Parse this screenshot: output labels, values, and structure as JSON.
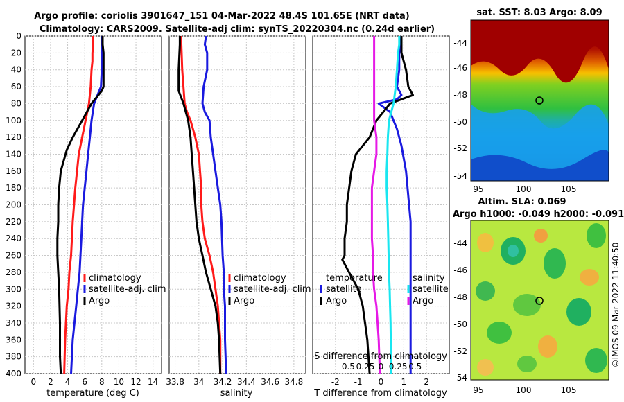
{
  "header": {
    "title_line1": "Argo profile: coriolis 3901647_151 04-Mar-2022 48.4S 101.65E (NRT data)",
    "title_line2": "Climatology: CARS2009. Satellite-adj clim: synTS_20220304.nc (0.24d earlier)"
  },
  "colors": {
    "argo": "#000000",
    "climatology": "#ff1a1a",
    "satellite": "#1a1adf",
    "salinity_satellite": "#19e6f0",
    "salinity_argo": "#e619e6",
    "grid": "#c8c8c8",
    "zero_line": "#000000"
  },
  "depth_axis": {
    "ylim": [
      0,
      400
    ],
    "ticks": [
      0,
      20,
      40,
      60,
      80,
      100,
      120,
      140,
      160,
      180,
      200,
      220,
      240,
      260,
      280,
      300,
      320,
      340,
      360,
      380,
      400
    ]
  },
  "legend_main": [
    "climatology",
    "satellite-adj. clim",
    "Argo"
  ],
  "legend_diff": {
    "temperature_header": "temperature",
    "salinity_header": "salinity",
    "temp_items": [
      "satellite",
      "Argo"
    ],
    "sal_items": [
      "satellite",
      "Argo"
    ]
  },
  "chart_data": [
    {
      "type": "line",
      "id": "temperature",
      "xlabel": "temperature (deg C)",
      "xlim": [
        -1,
        15
      ],
      "xticks": [
        0,
        2,
        4,
        6,
        8,
        10,
        12,
        14
      ],
      "ylim": [
        0,
        400
      ],
      "series": [
        {
          "name": "climatology",
          "color": "#ff1a1a",
          "x": [
            7.0,
            7.0,
            6.9,
            6.9,
            6.8,
            6.7,
            6.5,
            6.1,
            5.7,
            5.3,
            5.1,
            4.9,
            4.6,
            4.4,
            4.2,
            4.1,
            3.9,
            3.8,
            3.7,
            3.6
          ],
          "depth": [
            0,
            10,
            20,
            30,
            40,
            60,
            80,
            100,
            120,
            140,
            160,
            180,
            220,
            260,
            280,
            300,
            320,
            340,
            360,
            400
          ]
        },
        {
          "name": "satellite-adj. clim",
          "color": "#1a1adf",
          "x": [
            8.0,
            8.0,
            8.0,
            8.0,
            8.0,
            7.9,
            7.1,
            6.8,
            6.6,
            6.4,
            6.2,
            6.0,
            5.8,
            5.6,
            5.4,
            5.2,
            5.0,
            4.8,
            4.6,
            4.4
          ],
          "depth": [
            0,
            10,
            20,
            30,
            40,
            60,
            80,
            100,
            120,
            140,
            160,
            180,
            200,
            240,
            280,
            300,
            320,
            340,
            360,
            400
          ]
        },
        {
          "name": "Argo",
          "color": "#000000",
          "x": [
            8.1,
            8.1,
            8.2,
            8.2,
            8.2,
            8.2,
            8.0,
            6.8,
            5.7,
            4.6,
            3.9,
            3.2,
            3.0,
            2.9,
            2.9,
            2.8,
            2.8,
            2.9,
            3.0,
            3.1,
            3.1,
            3.2
          ],
          "depth": [
            0,
            10,
            20,
            30,
            40,
            60,
            65,
            80,
            100,
            120,
            135,
            160,
            180,
            200,
            220,
            240,
            260,
            280,
            300,
            340,
            380,
            400
          ]
        }
      ]
    },
    {
      "type": "line",
      "id": "salinity",
      "xlabel": "salinity",
      "xlim": [
        33.75,
        34.9
      ],
      "xticks": [
        33.8,
        34,
        34.2,
        34.4,
        34.6,
        34.8
      ],
      "ylim": [
        0,
        400
      ],
      "series": [
        {
          "name": "climatology",
          "color": "#ff1a1a",
          "x": [
            33.85,
            33.86,
            33.87,
            33.88,
            33.9,
            33.93,
            33.97,
            34.0,
            34.01,
            34.02,
            34.02,
            34.03,
            34.05,
            34.09,
            34.12,
            34.14,
            34.16,
            34.17,
            34.18,
            34.18
          ],
          "depth": [
            0,
            40,
            60,
            80,
            90,
            100,
            120,
            140,
            160,
            180,
            200,
            220,
            240,
            260,
            280,
            300,
            320,
            340,
            360,
            400
          ]
        },
        {
          "name": "satellite-adj. clim",
          "color": "#1a1adf",
          "x": [
            34.06,
            34.05,
            34.07,
            34.07,
            34.04,
            34.03,
            34.05,
            34.09,
            34.1,
            34.12,
            34.14,
            34.16,
            34.18,
            34.19,
            34.2,
            34.21,
            34.21,
            34.22,
            34.22,
            34.23
          ],
          "depth": [
            0,
            10,
            20,
            40,
            60,
            80,
            90,
            100,
            120,
            140,
            160,
            180,
            200,
            220,
            260,
            280,
            300,
            320,
            360,
            400
          ]
        },
        {
          "name": "Argo",
          "color": "#000000",
          "x": [
            33.84,
            33.84,
            33.83,
            33.83,
            33.87,
            33.91,
            33.93,
            33.94,
            33.95,
            33.96,
            33.97,
            33.98,
            34.0,
            34.03,
            34.06,
            34.1,
            34.14,
            34.16,
            34.17,
            34.18
          ],
          "depth": [
            0,
            10,
            40,
            65,
            80,
            100,
            120,
            140,
            160,
            180,
            200,
            220,
            240,
            260,
            280,
            300,
            320,
            340,
            360,
            400
          ]
        }
      ]
    },
    {
      "type": "line",
      "id": "difference",
      "xlabel": "T difference from climatology",
      "xlabel_top": "S difference from climatology",
      "xlim": [
        -3.0,
        3.0
      ],
      "xticks": [
        -2,
        -1,
        0,
        1,
        2
      ],
      "xticks_top_labels": [
        "-0.5",
        "-0.25",
        "0",
        "0.25",
        "0.5"
      ],
      "ylim": [
        0,
        400
      ],
      "series": [
        {
          "name": "temperature satellite",
          "color": "#1a1adf",
          "x": [
            0.9,
            0.8,
            0.8,
            0.7,
            0.8,
            0.9,
            0.7,
            -0.1,
            0.4,
            0.7,
            0.9,
            1.1,
            1.2,
            1.3,
            1.3,
            1.3,
            1.3,
            1.3,
            1.3,
            1.3
          ],
          "depth": [
            0,
            20,
            40,
            60,
            65,
            70,
            75,
            80,
            90,
            110,
            130,
            160,
            190,
            220,
            260,
            280,
            300,
            320,
            360,
            400
          ]
        },
        {
          "name": "temperature Argo",
          "color": "#000000",
          "x": [
            0.9,
            0.9,
            0.9,
            1.0,
            1.1,
            1.2,
            1.4,
            0.4,
            -0.2,
            -0.5,
            -1.1,
            -1.3,
            -1.5,
            -1.5,
            -1.6,
            -1.6,
            -1.7,
            -1.4,
            -1.0,
            -0.8,
            -0.6,
            -0.5
          ],
          "depth": [
            0,
            10,
            20,
            30,
            40,
            60,
            70,
            80,
            100,
            120,
            140,
            160,
            200,
            220,
            240,
            260,
            265,
            280,
            300,
            320,
            360,
            400
          ]
        },
        {
          "name": "salinity satellite",
          "color": "#19e6f0",
          "x": [
            0.8,
            0.8,
            0.75,
            0.7,
            0.65,
            0.55,
            0.35,
            0.3,
            0.28,
            0.25,
            0.25,
            0.28,
            0.3,
            0.32,
            0.35,
            0.38,
            0.4,
            0.42,
            0.43,
            0.45
          ],
          "depth": [
            0,
            10,
            20,
            40,
            60,
            80,
            100,
            120,
            140,
            160,
            180,
            200,
            220,
            240,
            280,
            300,
            320,
            340,
            360,
            400
          ]
        },
        {
          "name": "salinity Argo",
          "color": "#e619e6",
          "x": [
            -0.3,
            -0.3,
            -0.3,
            -0.3,
            -0.3,
            -0.3,
            -0.2,
            -0.2,
            -0.3,
            -0.4,
            -0.4,
            -0.4,
            -0.4,
            -0.35,
            -0.35,
            -0.3,
            -0.2,
            -0.15,
            -0.1,
            -0.05
          ],
          "depth": [
            0,
            20,
            40,
            60,
            80,
            100,
            120,
            140,
            160,
            180,
            200,
            220,
            240,
            260,
            280,
            300,
            320,
            340,
            360,
            400
          ]
        }
      ]
    }
  ],
  "maps": {
    "sst": {
      "title": "sat. SST: 8.03 Argo: 8.09",
      "lat_labels": [
        "-44",
        "-46",
        "-48",
        "-50",
        "-52",
        "-54"
      ],
      "lon_labels": [
        "95",
        "100",
        "105"
      ]
    },
    "sla": {
      "title_line1": "Altim. SLA: 0.069",
      "title_line2": "Argo h1000: -0.049 h2000: -0.091",
      "lat_labels": [
        "-44",
        "-46",
        "-48",
        "-50",
        "-52",
        "-54"
      ],
      "lon_labels": [
        "95",
        "100",
        "105"
      ]
    },
    "credit": "©IMOS 09-Mar-2022 11:40:50"
  }
}
